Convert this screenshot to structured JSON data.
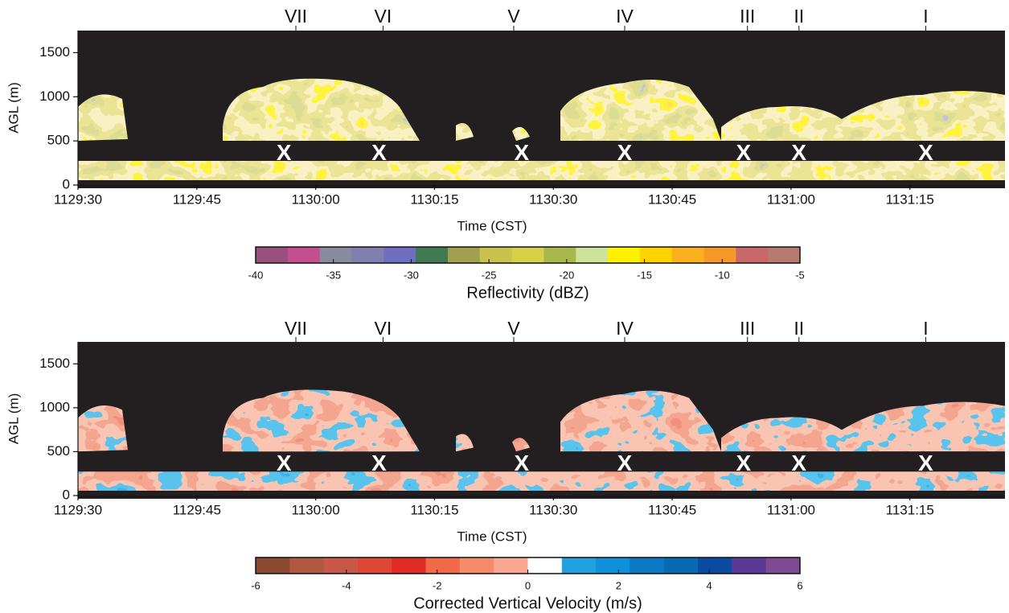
{
  "chart_data": [
    {
      "type": "heatmap",
      "x_label": "Time (CST)",
      "y_label": "AGL (m)",
      "xlim": [
        41370,
        41487
      ],
      "ylim": [
        0,
        1750
      ],
      "xticks": [
        {
          "value": 41370,
          "label": "1129:30"
        },
        {
          "value": 41385,
          "label": "1129:45"
        },
        {
          "value": 41400,
          "label": "1130:00"
        },
        {
          "value": 41415,
          "label": "1130:15"
        },
        {
          "value": 41430,
          "label": "1130:30"
        },
        {
          "value": 41445,
          "label": "1130:45"
        },
        {
          "value": 41460,
          "label": "1131:00"
        },
        {
          "value": 41475,
          "label": "1131:15"
        }
      ],
      "yticks": [
        0,
        500,
        1000,
        1500
      ],
      "annotations": {
        "labels": [
          "VII",
          "VI",
          "V",
          "IV",
          "III",
          "II",
          "I"
        ],
        "x": [
          41397.5,
          41408.5,
          41425,
          41439,
          41454.5,
          41461,
          41477
        ]
      },
      "markers": {
        "label": "X",
        "x": [
          41396,
          41408,
          41426,
          41439,
          41454,
          41461,
          41477
        ],
        "y": [
          350,
          350,
          350,
          350,
          350,
          350,
          350
        ]
      },
      "colorbar": {
        "label": "Reflectivity (dBZ)",
        "lim": [
          -40,
          -5
        ],
        "ticks": [
          -40,
          -35,
          -30,
          -25,
          -20,
          -15,
          -10,
          -5
        ],
        "colors": [
          "#9b4f7e",
          "#c44f8e",
          "#8a8aa0",
          "#7f7fb0",
          "#6f6fbf",
          "#3f7a50",
          "#a0a050",
          "#c9c24f",
          "#d8d048",
          "#a8b84a",
          "#cde39a",
          "#fff200",
          "#ffd200",
          "#fbb020",
          "#f59a28",
          "#c96868",
          "#b67a6e"
        ]
      }
    },
    {
      "type": "heatmap",
      "x_label": "Time (CST)",
      "y_label": "AGL (m)",
      "xlim": [
        41370,
        41487
      ],
      "ylim": [
        0,
        1750
      ],
      "xticks": [
        {
          "value": 41370,
          "label": "1129:30"
        },
        {
          "value": 41385,
          "label": "1129:45"
        },
        {
          "value": 41400,
          "label": "1130:00"
        },
        {
          "value": 41415,
          "label": "1130:15"
        },
        {
          "value": 41430,
          "label": "1130:30"
        },
        {
          "value": 41445,
          "label": "1130:45"
        },
        {
          "value": 41460,
          "label": "1131:00"
        },
        {
          "value": 41475,
          "label": "1131:15"
        }
      ],
      "yticks": [
        0,
        500,
        1000,
        1500
      ],
      "annotations": {
        "labels": [
          "VII",
          "VI",
          "V",
          "IV",
          "III",
          "II",
          "I"
        ],
        "x": [
          41397.5,
          41408.5,
          41425,
          41439,
          41454.5,
          41461,
          41477
        ]
      },
      "markers": {
        "label": "X",
        "x": [
          41396,
          41408,
          41426,
          41439,
          41454,
          41461,
          41477
        ],
        "y": [
          350,
          350,
          350,
          350,
          350,
          350,
          350
        ]
      },
      "colorbar": {
        "label": "Corrected Vertical Velocity (m/s)",
        "lim": [
          -6,
          6
        ],
        "ticks": [
          -6,
          -4,
          -2,
          0,
          2,
          4,
          6
        ],
        "colors": [
          "#8a4a30",
          "#b05840",
          "#c8584a",
          "#de4636",
          "#e02a26",
          "#f06a4a",
          "#f58a6a",
          "#f8a890",
          "#ffffff",
          "#22a0e0",
          "#1090d8",
          "#0c78c4",
          "#0868b0",
          "#0a4aa0",
          "#5a3a94",
          "#7e4a92"
        ]
      }
    }
  ]
}
